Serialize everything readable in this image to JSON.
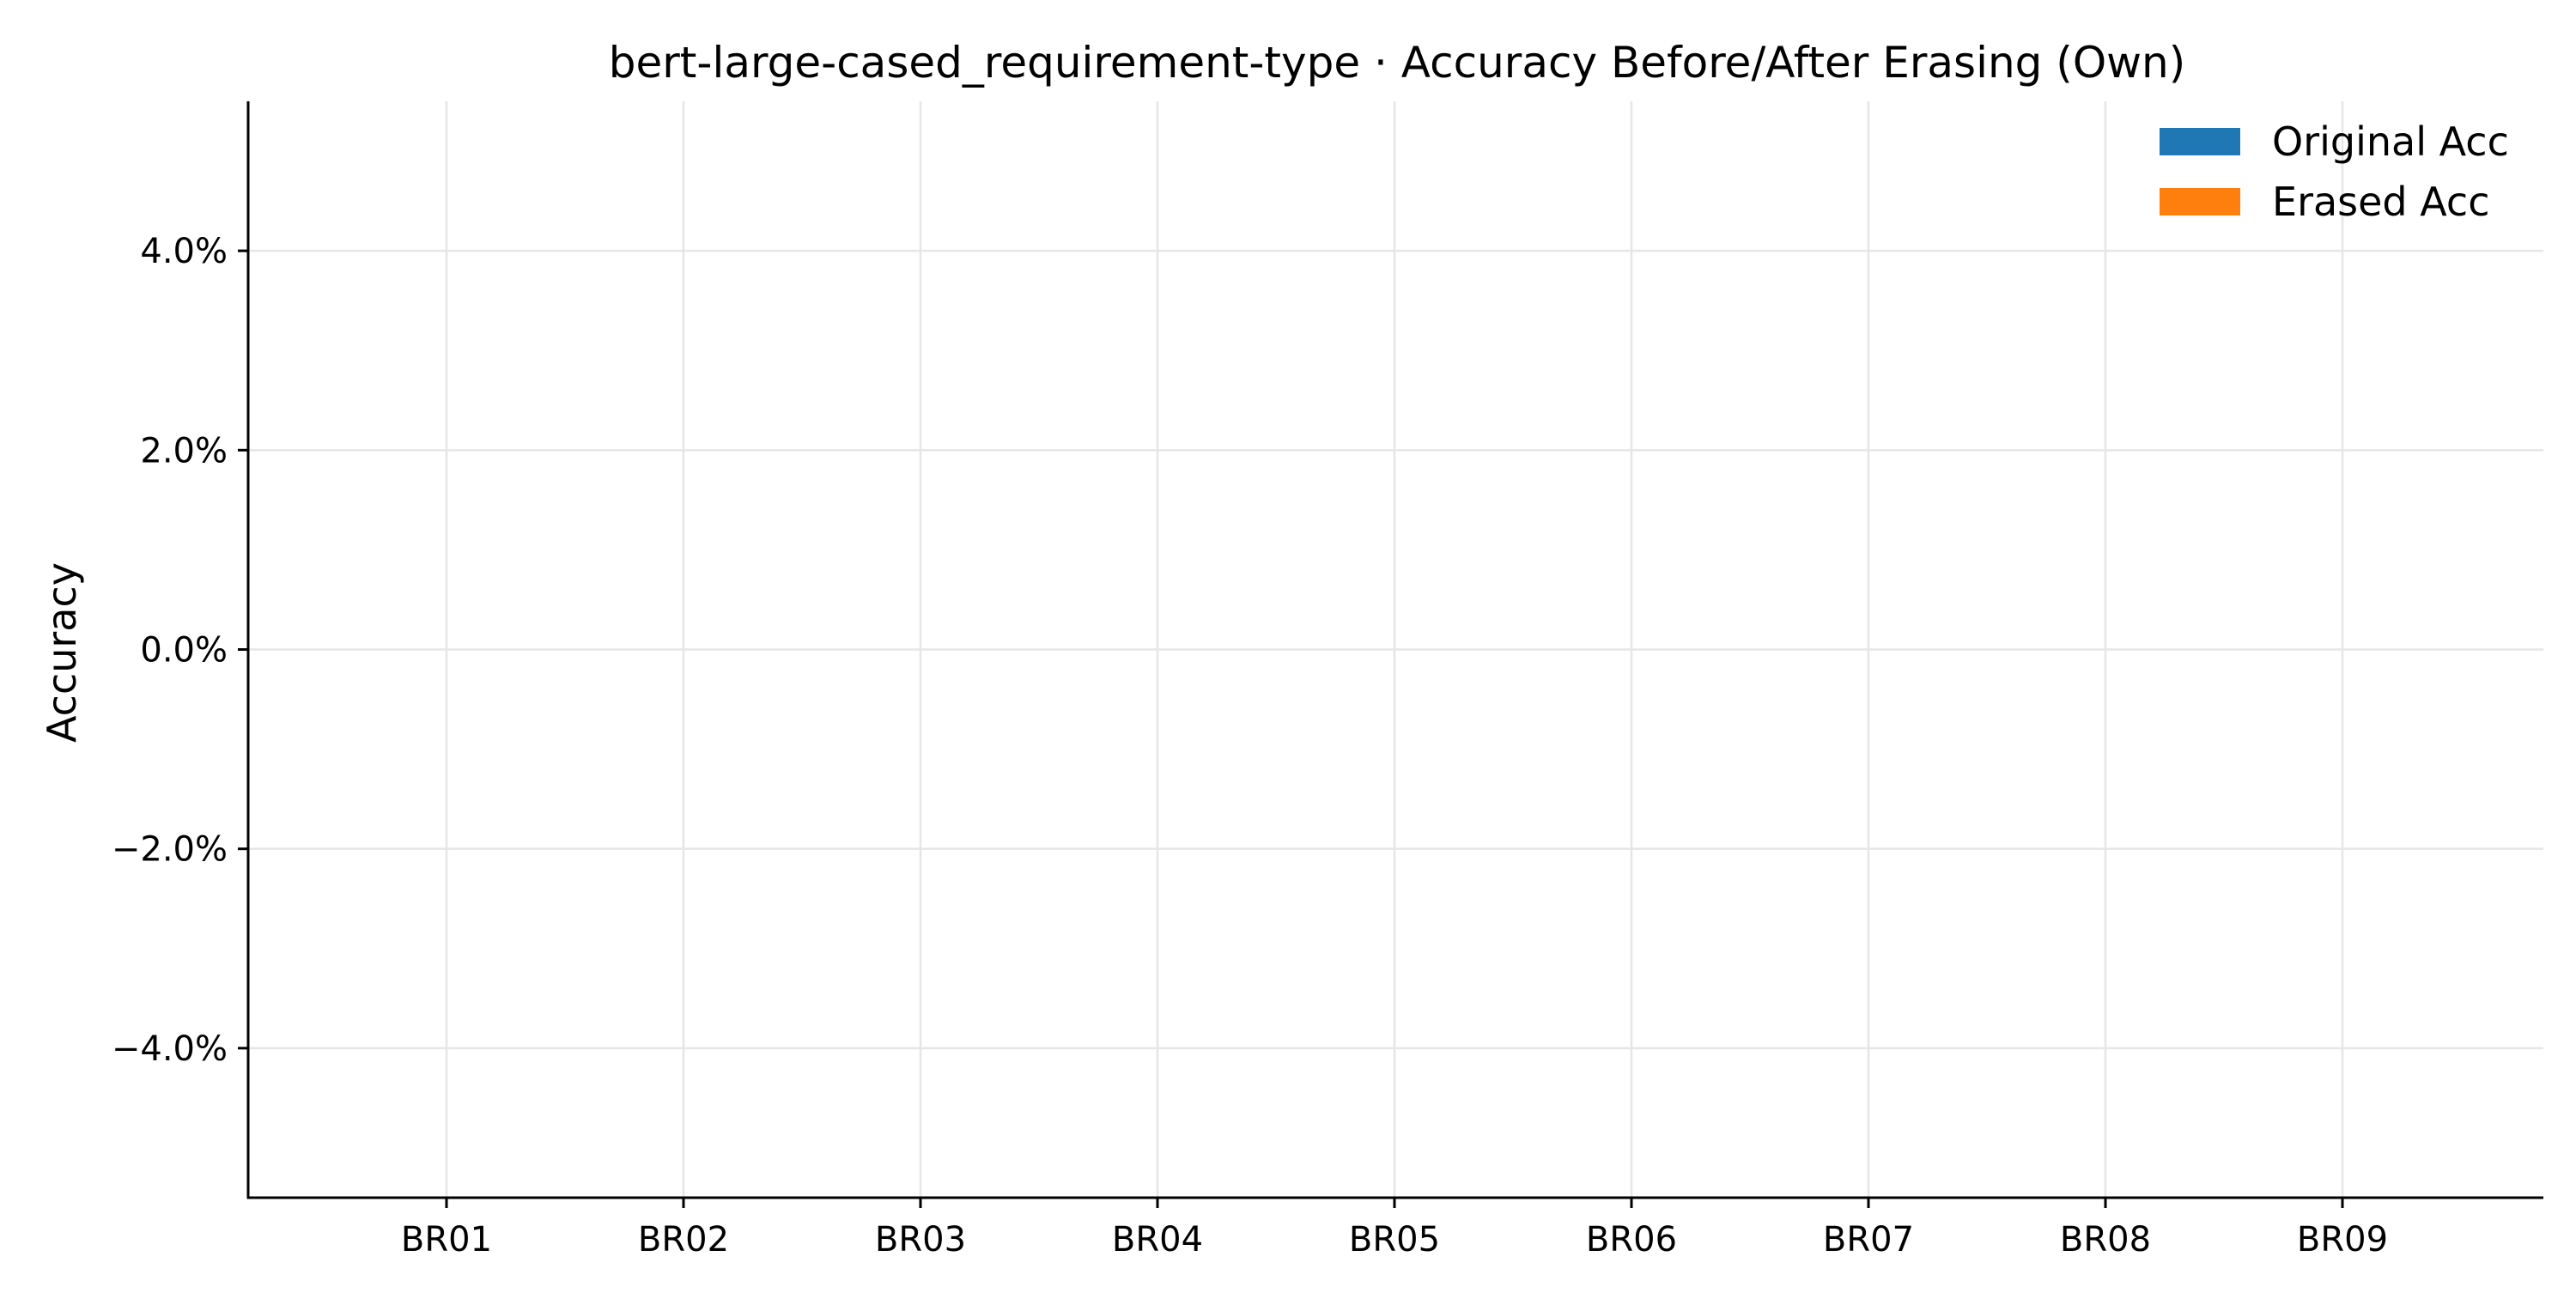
{
  "chart_data": {
    "type": "bar",
    "title": "bert-large-cased_requirement-type · Accuracy Before/After Erasing (Own)",
    "xlabel": "",
    "ylabel": "Accuracy",
    "categories": [
      "BR01",
      "BR02",
      "BR03",
      "BR04",
      "BR05",
      "BR06",
      "BR07",
      "BR08",
      "BR09"
    ],
    "series": [
      {
        "name": "Original Acc",
        "color": "#1f77b4",
        "values": [
          null,
          null,
          null,
          null,
          null,
          null,
          null,
          null,
          null
        ]
      },
      {
        "name": "Erased Acc",
        "color": "#ff7f0e",
        "values": [
          null,
          null,
          null,
          null,
          null,
          null,
          null,
          null,
          null
        ]
      }
    ],
    "ylim": [
      -0.055,
      0.055
    ],
    "yticks": [
      -0.04,
      -0.02,
      0.0,
      0.02,
      0.04
    ],
    "ytick_labels": [
      "−4.0%",
      "−2.0%",
      "0.0%",
      "2.0%",
      "4.0%"
    ],
    "grid": true,
    "legend_position": "top-right",
    "spines": "left-bottom"
  }
}
